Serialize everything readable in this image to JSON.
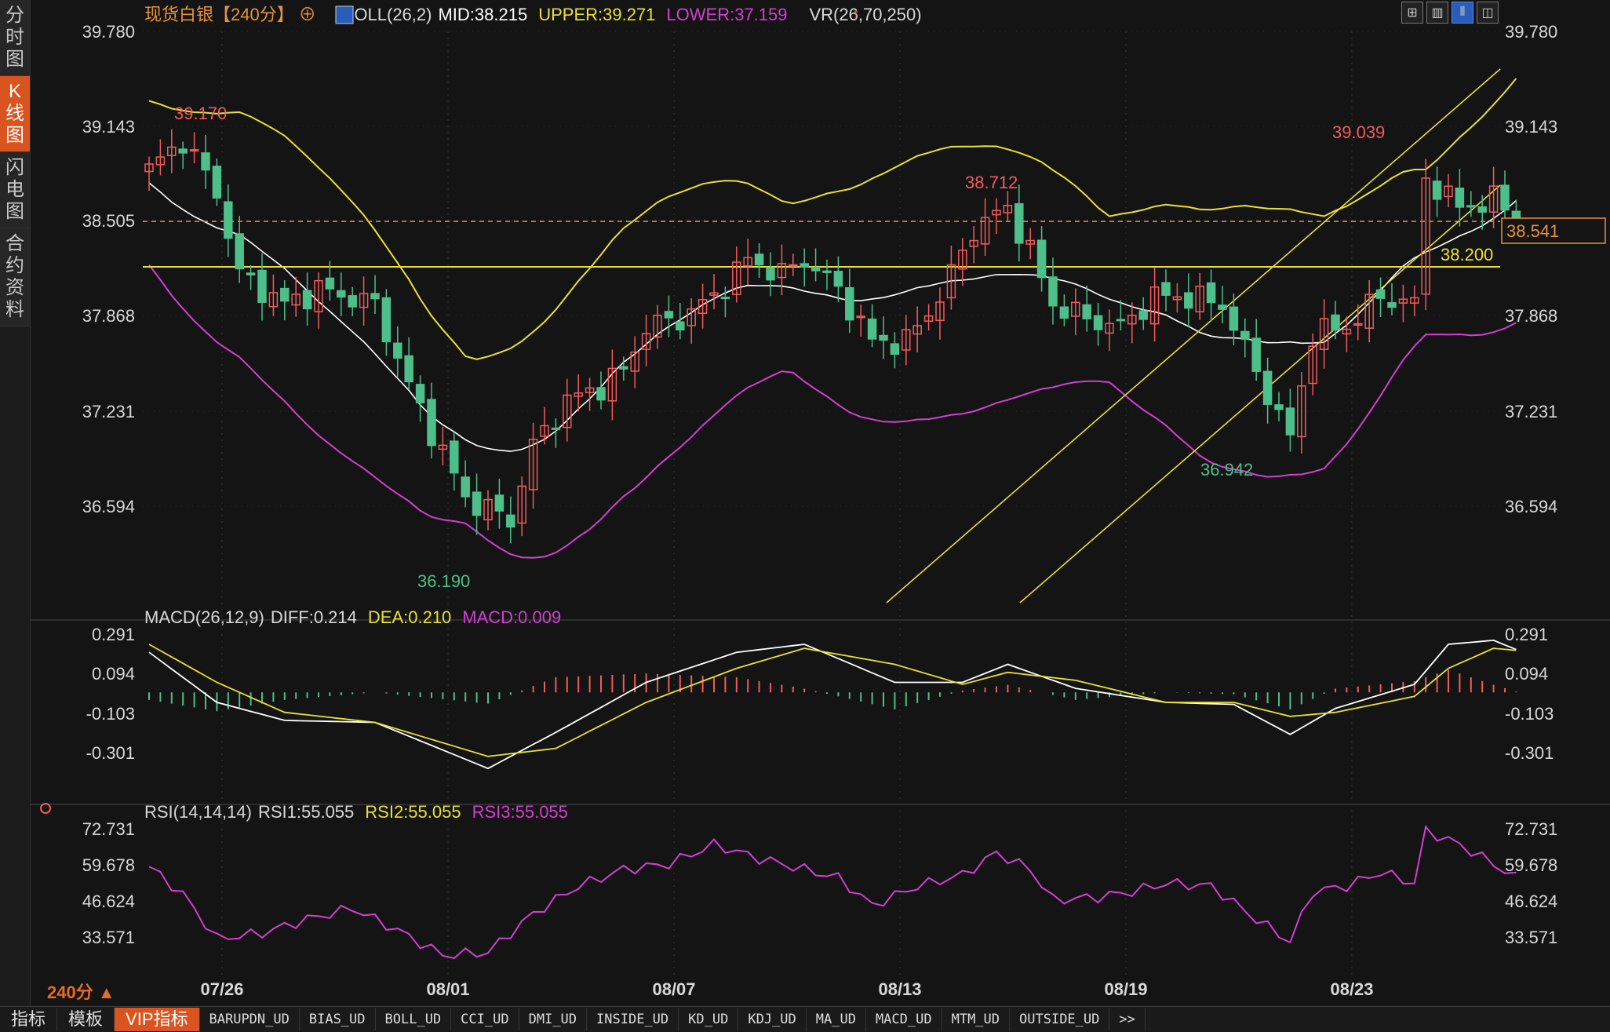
{
  "sidebar": {
    "tabs": [
      {
        "label": "分时图",
        "active": false
      },
      {
        "label": "K线图",
        "active": true
      },
      {
        "label": "闪电图",
        "active": false
      },
      {
        "label": "合约资料",
        "active": false
      }
    ]
  },
  "toolbar_icons": [
    "grid-icon",
    "panel-icon",
    "kline-icon",
    "window-icon"
  ],
  "colors": {
    "up": "#f05c5c",
    "down": "#4dbf8a",
    "mid": "#ffffff",
    "upper": "#e8e035",
    "lower": "#d23fd2",
    "dea": "#e8e035",
    "macd_label": "#d23fd2",
    "rsi": "#d23fd2"
  },
  "main": {
    "title": "现货白银【240分】",
    "boll_label": "BOLL(26,2)",
    "mid": "MID:38.215",
    "upper": "UPPER:39.271",
    "lower": "LOWER:37.159",
    "vr_label": "VR(26,70,250)",
    "y_ticks": [
      "39.780",
      "39.143",
      "38.505",
      "37.868",
      "37.231",
      "36.594"
    ],
    "right_ticks": [
      "39.780",
      "39.143",
      "37.868",
      "37.231",
      "36.594"
    ],
    "current_price": "38.541",
    "hline_label": "38.200",
    "annotations": [
      {
        "text": "39.170",
        "price": 39.17,
        "type": "high"
      },
      {
        "text": "36.190",
        "price": 36.19,
        "type": "low"
      },
      {
        "text": "38.712",
        "price": 38.712,
        "type": "high"
      },
      {
        "text": "36.942",
        "price": 36.942,
        "type": "low"
      },
      {
        "text": "39.039",
        "price": 39.039,
        "type": "high"
      }
    ]
  },
  "macd": {
    "label": "MACD(26,12,9)",
    "diff": "DIFF:0.214",
    "dea": "DEA:0.210",
    "macd": "MACD:0.009",
    "y_ticks": [
      "0.291",
      "0.094",
      "-0.103",
      "-0.301"
    ]
  },
  "rsi": {
    "label": "RSI(14,14,14)",
    "rsi1": "RSI1:55.055",
    "rsi2": "RSI2:55.055",
    "rsi3": "RSI3:55.055",
    "y_ticks": [
      "72.731",
      "59.678",
      "46.624",
      "33.571"
    ]
  },
  "x_labels": [
    "07/26",
    "08/01",
    "08/07",
    "08/13",
    "08/19",
    "08/23"
  ],
  "period_label": "240分",
  "bottom_tabs": [
    {
      "label": "指标",
      "active": false
    },
    {
      "label": "模板",
      "active": false
    },
    {
      "label": "VIP指标",
      "active": true
    },
    {
      "label": "BARUPDN_UD",
      "active": false
    },
    {
      "label": "BIAS_UD",
      "active": false
    },
    {
      "label": "BOLL_UD",
      "active": false
    },
    {
      "label": "CCI_UD",
      "active": false
    },
    {
      "label": "DMI_UD",
      "active": false
    },
    {
      "label": "INSIDE_UD",
      "active": false
    },
    {
      "label": "KD_UD",
      "active": false
    },
    {
      "label": "KDJ_UD",
      "active": false
    },
    {
      "label": "MA_UD",
      "active": false
    },
    {
      "label": "MACD_UD",
      "active": false
    },
    {
      "label": "MTM_UD",
      "active": false
    },
    {
      "label": "OUTSIDE_UD",
      "active": false
    },
    {
      "label": ">>",
      "active": false
    }
  ],
  "chart_data": {
    "type": "candlestick",
    "price_axis": {
      "min": 35.8,
      "max": 39.9,
      "ticks": [
        39.78,
        39.143,
        38.505,
        37.868,
        37.231,
        36.594
      ]
    },
    "anchors": [
      {
        "i": 0,
        "p": 38.85
      },
      {
        "i": 3,
        "p": 39.05
      },
      {
        "i": 6,
        "p": 38.7
      },
      {
        "i": 8,
        "p": 38.15
      },
      {
        "i": 12,
        "p": 37.95
      },
      {
        "i": 15,
        "p": 38.05
      },
      {
        "i": 20,
        "p": 37.95
      },
      {
        "i": 23,
        "p": 37.4
      },
      {
        "i": 25,
        "p": 37.1
      },
      {
        "i": 28,
        "p": 36.65
      },
      {
        "i": 32,
        "p": 36.5
      },
      {
        "i": 34,
        "p": 37.0
      },
      {
        "i": 37,
        "p": 37.3
      },
      {
        "i": 40,
        "p": 37.4
      },
      {
        "i": 42,
        "p": 37.5
      },
      {
        "i": 44,
        "p": 37.8
      },
      {
        "i": 47,
        "p": 37.85
      },
      {
        "i": 50,
        "p": 38.0
      },
      {
        "i": 53,
        "p": 38.25
      },
      {
        "i": 56,
        "p": 38.15
      },
      {
        "i": 58,
        "p": 38.25
      },
      {
        "i": 61,
        "p": 38.05
      },
      {
        "i": 64,
        "p": 37.7
      },
      {
        "i": 67,
        "p": 37.7
      },
      {
        "i": 70,
        "p": 38.0
      },
      {
        "i": 73,
        "p": 38.45
      },
      {
        "i": 76,
        "p": 38.6
      },
      {
        "i": 78,
        "p": 38.3
      },
      {
        "i": 80,
        "p": 37.95
      },
      {
        "i": 83,
        "p": 37.85
      },
      {
        "i": 86,
        "p": 37.8
      },
      {
        "i": 89,
        "p": 38.0
      },
      {
        "i": 92,
        "p": 38.0
      },
      {
        "i": 95,
        "p": 37.95
      },
      {
        "i": 98,
        "p": 37.5
      },
      {
        "i": 100,
        "p": 37.2
      },
      {
        "i": 101,
        "p": 37.05
      },
      {
        "i": 103,
        "p": 37.75
      },
      {
        "i": 106,
        "p": 37.8
      },
      {
        "i": 109,
        "p": 38.0
      },
      {
        "i": 112,
        "p": 37.95
      },
      {
        "i": 113,
        "p": 38.8
      },
      {
        "i": 116,
        "p": 38.6
      },
      {
        "i": 119,
        "p": 38.65
      },
      {
        "i": 121,
        "p": 38.55
      }
    ],
    "rsi_anchors": [
      {
        "i": 0,
        "v": 59
      },
      {
        "i": 3,
        "v": 49
      },
      {
        "i": 6,
        "v": 33
      },
      {
        "i": 10,
        "v": 35
      },
      {
        "i": 14,
        "v": 40
      },
      {
        "i": 18,
        "v": 44
      },
      {
        "i": 22,
        "v": 36
      },
      {
        "i": 26,
        "v": 27
      },
      {
        "i": 30,
        "v": 28
      },
      {
        "i": 34,
        "v": 42
      },
      {
        "i": 38,
        "v": 52
      },
      {
        "i": 42,
        "v": 58
      },
      {
        "i": 46,
        "v": 60
      },
      {
        "i": 50,
        "v": 67
      },
      {
        "i": 54,
        "v": 62
      },
      {
        "i": 58,
        "v": 58
      },
      {
        "i": 61,
        "v": 55
      },
      {
        "i": 64,
        "v": 45
      },
      {
        "i": 68,
        "v": 52
      },
      {
        "i": 72,
        "v": 56
      },
      {
        "i": 75,
        "v": 64
      },
      {
        "i": 78,
        "v": 58
      },
      {
        "i": 80,
        "v": 47
      },
      {
        "i": 84,
        "v": 48
      },
      {
        "i": 87,
        "v": 50
      },
      {
        "i": 90,
        "v": 53
      },
      {
        "i": 94,
        "v": 52
      },
      {
        "i": 98,
        "v": 40
      },
      {
        "i": 101,
        "v": 32
      },
      {
        "i": 103,
        "v": 50
      },
      {
        "i": 106,
        "v": 52
      },
      {
        "i": 109,
        "v": 57
      },
      {
        "i": 112,
        "v": 53
      },
      {
        "i": 113,
        "v": 72
      },
      {
        "i": 116,
        "v": 67
      },
      {
        "i": 119,
        "v": 60
      },
      {
        "i": 121,
        "v": 55
      }
    ],
    "macd_anchors": [
      {
        "i": 0,
        "d": 0.2,
        "e": 0.24
      },
      {
        "i": 6,
        "d": -0.05,
        "e": 0.05
      },
      {
        "i": 12,
        "d": -0.14,
        "e": -0.1
      },
      {
        "i": 20,
        "d": -0.15,
        "e": -0.15
      },
      {
        "i": 30,
        "d": -0.38,
        "e": -0.32
      },
      {
        "i": 36,
        "d": -0.2,
        "e": -0.28
      },
      {
        "i": 44,
        "d": 0.05,
        "e": -0.05
      },
      {
        "i": 52,
        "d": 0.2,
        "e": 0.12
      },
      {
        "i": 58,
        "d": 0.24,
        "e": 0.22
      },
      {
        "i": 66,
        "d": 0.05,
        "e": 0.14
      },
      {
        "i": 72,
        "d": 0.05,
        "e": 0.04
      },
      {
        "i": 76,
        "d": 0.14,
        "e": 0.1
      },
      {
        "i": 82,
        "d": 0.02,
        "e": 0.06
      },
      {
        "i": 90,
        "d": -0.05,
        "e": -0.05
      },
      {
        "i": 96,
        "d": -0.06,
        "e": -0.05
      },
      {
        "i": 101,
        "d": -0.21,
        "e": -0.12
      },
      {
        "i": 105,
        "d": -0.08,
        "e": -0.1
      },
      {
        "i": 112,
        "d": 0.04,
        "e": -0.02
      },
      {
        "i": 115,
        "d": 0.24,
        "e": 0.12
      },
      {
        "i": 119,
        "d": 0.26,
        "e": 0.22
      },
      {
        "i": 121,
        "d": 0.214,
        "e": 0.21
      }
    ]
  }
}
